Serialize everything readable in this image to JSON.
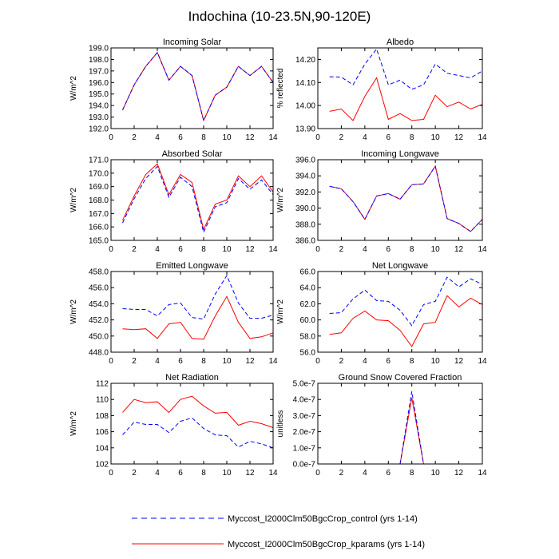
{
  "figure": {
    "title": "Indochina (10-23.5N,90-120E)",
    "colors": {
      "control": "#0000ff",
      "kparams": "#ff0000",
      "axis": "#000000"
    }
  },
  "legend": {
    "control": {
      "label": "Myccost_I2000Clm50BgcCrop_control (yrs 1-14)",
      "style": "dashed",
      "color": "#0000ff"
    },
    "kparams": {
      "label": "Myccost_I2000Clm50BgcCrop_kparams (yrs 1-14)",
      "style": "solid",
      "color": "#ff0000"
    }
  },
  "chart_data": [
    {
      "type": "line",
      "title": "Incoming Solar",
      "ylabel": "W/m^2",
      "x": [
        1,
        2,
        3,
        4,
        5,
        6,
        7,
        8,
        9,
        10,
        11,
        12,
        13,
        14
      ],
      "xlim": [
        0,
        14
      ],
      "xticks": [
        0,
        2,
        4,
        6,
        8,
        10,
        12,
        14
      ],
      "xtick_labels": [
        "0",
        "2",
        "4",
        "6",
        "8",
        "10",
        "12",
        "14"
      ],
      "ylim": [
        192,
        199
      ],
      "yticks": [
        192,
        193,
        194,
        195,
        196,
        197,
        198,
        199
      ],
      "ytick_labels": [
        "192.0",
        "193.0",
        "194.0",
        "195.0",
        "196.0",
        "197.0",
        "198.0",
        "199.0"
      ],
      "series": [
        {
          "name": "control",
          "values": [
            193.6,
            195.8,
            197.4,
            198.6,
            196.2,
            197.4,
            196.6,
            192.7,
            194.9,
            195.6,
            197.4,
            196.6,
            197.4,
            196.0
          ]
        },
        {
          "name": "kparams",
          "values": [
            193.6,
            195.8,
            197.4,
            198.6,
            196.2,
            197.4,
            196.6,
            192.7,
            194.9,
            195.6,
            197.4,
            196.6,
            197.4,
            196.0
          ]
        }
      ]
    },
    {
      "type": "line",
      "title": "Albedo",
      "ylabel": "% reflected",
      "x": [
        1,
        2,
        3,
        4,
        5,
        6,
        7,
        8,
        9,
        10,
        11,
        12,
        13,
        14
      ],
      "xlim": [
        0,
        14
      ],
      "xticks": [
        0,
        2,
        4,
        6,
        8,
        10,
        12,
        14
      ],
      "xtick_labels": [
        "0",
        "2",
        "4",
        "6",
        "8",
        "10",
        "12",
        "14"
      ],
      "ylim": [
        13.9,
        14.25
      ],
      "yticks": [
        13.9,
        14.0,
        14.1,
        14.2
      ],
      "ytick_labels": [
        "13.90",
        "14.00",
        "14.10",
        "14.20"
      ],
      "series": [
        {
          "name": "control",
          "values": [
            14.125,
            14.123,
            14.09,
            14.18,
            14.245,
            14.09,
            14.11,
            14.07,
            14.09,
            14.18,
            14.14,
            14.13,
            14.12,
            14.15
          ]
        },
        {
          "name": "kparams",
          "values": [
            13.975,
            13.985,
            13.935,
            14.04,
            14.12,
            13.94,
            13.965,
            13.935,
            13.94,
            14.045,
            13.995,
            14.015,
            13.985,
            14.005
          ]
        }
      ]
    },
    {
      "type": "line",
      "title": "Absorbed Solar",
      "ylabel": "W/m^2",
      "x": [
        1,
        2,
        3,
        4,
        5,
        6,
        7,
        8,
        9,
        10,
        11,
        12,
        13,
        14
      ],
      "xlim": [
        0,
        14
      ],
      "xticks": [
        0,
        2,
        4,
        6,
        8,
        10,
        12,
        14
      ],
      "xtick_labels": [
        "0",
        "2",
        "4",
        "6",
        "8",
        "10",
        "12",
        "14"
      ],
      "ylim": [
        165,
        171
      ],
      "yticks": [
        165,
        166,
        167,
        168,
        169,
        170,
        171
      ],
      "ytick_labels": [
        "165.0",
        "166.0",
        "167.0",
        "168.0",
        "169.0",
        "170.0",
        "171.0"
      ],
      "series": [
        {
          "name": "control",
          "values": [
            166.3,
            168.1,
            169.6,
            170.5,
            168.2,
            169.7,
            169.0,
            165.6,
            167.5,
            167.8,
            169.6,
            168.8,
            169.5,
            168.4
          ]
        },
        {
          "name": "kparams",
          "values": [
            166.5,
            168.3,
            169.9,
            170.7,
            168.4,
            169.9,
            169.3,
            165.8,
            167.7,
            168.0,
            169.8,
            169.0,
            169.8,
            168.6
          ]
        }
      ]
    },
    {
      "type": "line",
      "title": "Incoming Longwave",
      "ylabel": "W/m^2",
      "x": [
        1,
        2,
        3,
        4,
        5,
        6,
        7,
        8,
        9,
        10,
        11,
        12,
        13,
        14
      ],
      "xlim": [
        0,
        14
      ],
      "xticks": [
        0,
        2,
        4,
        6,
        8,
        10,
        12,
        14
      ],
      "xtick_labels": [
        "0",
        "2",
        "4",
        "6",
        "8",
        "10",
        "12",
        "14"
      ],
      "ylim": [
        386,
        396
      ],
      "yticks": [
        386,
        388,
        390,
        392,
        394,
        396
      ],
      "ytick_labels": [
        "386.0",
        "388.0",
        "390.0",
        "392.0",
        "394.0",
        "396.0"
      ],
      "series": [
        {
          "name": "control",
          "values": [
            392.7,
            392.4,
            390.8,
            388.6,
            391.5,
            391.8,
            391.1,
            392.9,
            393.0,
            395.2,
            388.7,
            388.1,
            387.1,
            388.6
          ]
        },
        {
          "name": "kparams",
          "values": [
            392.7,
            392.4,
            390.8,
            388.6,
            391.5,
            391.8,
            391.1,
            392.9,
            393.0,
            395.2,
            388.7,
            388.1,
            387.1,
            388.6
          ]
        }
      ]
    },
    {
      "type": "line",
      "title": "Emitted Longwave",
      "ylabel": "W/m^2",
      "x": [
        1,
        2,
        3,
        4,
        5,
        6,
        7,
        8,
        9,
        10,
        11,
        12,
        13,
        14
      ],
      "xlim": [
        0,
        14
      ],
      "xticks": [
        0,
        2,
        4,
        6,
        8,
        10,
        12,
        14
      ],
      "xtick_labels": [
        "0",
        "2",
        "4",
        "6",
        "8",
        "10",
        "12",
        "14"
      ],
      "ylim": [
        448,
        458
      ],
      "yticks": [
        448,
        450,
        452,
        454,
        456,
        458
      ],
      "ytick_labels": [
        "448.0",
        "450.0",
        "452.0",
        "454.0",
        "456.0",
        "458.0"
      ],
      "series": [
        {
          "name": "control",
          "values": [
            453.4,
            453.3,
            453.3,
            452.5,
            453.9,
            454.1,
            452.3,
            452.1,
            455.2,
            457.5,
            454.1,
            452.2,
            452.2,
            452.6
          ]
        },
        {
          "name": "kparams",
          "values": [
            450.9,
            450.8,
            450.9,
            449.7,
            451.5,
            451.7,
            449.7,
            449.6,
            452.5,
            454.9,
            451.7,
            449.7,
            449.9,
            450.4
          ]
        }
      ]
    },
    {
      "type": "line",
      "title": "Net Longwave",
      "ylabel": "W/m^2",
      "x": [
        1,
        2,
        3,
        4,
        5,
        6,
        7,
        8,
        9,
        10,
        11,
        12,
        13,
        14
      ],
      "xlim": [
        0,
        14
      ],
      "xticks": [
        0,
        2,
        4,
        6,
        8,
        10,
        12,
        14
      ],
      "xtick_labels": [
        "0",
        "2",
        "4",
        "6",
        "8",
        "10",
        "12",
        "14"
      ],
      "ylim": [
        56,
        66
      ],
      "yticks": [
        56,
        58,
        60,
        62,
        64,
        66
      ],
      "ytick_labels": [
        "56.0",
        "58.0",
        "60.0",
        "62.0",
        "64.0",
        "66.0"
      ],
      "series": [
        {
          "name": "control",
          "values": [
            60.8,
            60.9,
            62.6,
            63.7,
            62.4,
            62.3,
            61.2,
            59.3,
            61.9,
            62.3,
            65.3,
            64.1,
            65.1,
            64.4
          ]
        },
        {
          "name": "kparams",
          "values": [
            58.2,
            58.4,
            60.2,
            61.1,
            60.0,
            59.9,
            58.7,
            56.7,
            59.5,
            59.7,
            63.0,
            61.6,
            62.7,
            61.9
          ]
        }
      ]
    },
    {
      "type": "line",
      "title": "Net Radiation",
      "ylabel": "W/m^2",
      "x": [
        1,
        2,
        3,
        4,
        5,
        6,
        7,
        8,
        9,
        10,
        11,
        12,
        13,
        14
      ],
      "xlim": [
        0,
        14
      ],
      "xticks": [
        0,
        2,
        4,
        6,
        8,
        10,
        12,
        14
      ],
      "xtick_labels": [
        "0",
        "2",
        "4",
        "6",
        "8",
        "10",
        "12",
        "14"
      ],
      "ylim": [
        102,
        112
      ],
      "yticks": [
        102,
        104,
        106,
        108,
        110,
        112
      ],
      "ytick_labels": [
        "102",
        "104",
        "106",
        "108",
        "110",
        "112"
      ],
      "series": [
        {
          "name": "control",
          "values": [
            105.6,
            107.2,
            106.9,
            106.9,
            105.9,
            107.3,
            107.7,
            106.4,
            105.6,
            105.5,
            104.1,
            104.8,
            104.5,
            104.0
          ]
        },
        {
          "name": "kparams",
          "values": [
            108.4,
            110.0,
            109.6,
            109.7,
            108.4,
            110.0,
            110.4,
            109.2,
            108.3,
            108.4,
            106.8,
            107.3,
            107.0,
            106.5
          ]
        }
      ]
    },
    {
      "type": "line",
      "title": "Ground Snow Covered Fraction",
      "ylabel": "unitless",
      "x": [
        1,
        2,
        3,
        4,
        5,
        6,
        7,
        8,
        9,
        10,
        11,
        12,
        13,
        14
      ],
      "xlim": [
        0,
        14
      ],
      "xticks": [
        0,
        2,
        4,
        6,
        8,
        10,
        12,
        14
      ],
      "xtick_labels": [
        "0",
        "2",
        "4",
        "6",
        "8",
        "10",
        "12",
        "14"
      ],
      "ylim": [
        0,
        5e-07
      ],
      "yticks": [
        0,
        1e-07,
        2e-07,
        3e-07,
        4e-07,
        5e-07
      ],
      "ytick_labels": [
        "0.0e-7",
        "1.0e-7",
        "2.0e-7",
        "3.0e-7",
        "4.0e-7",
        "5.0e-7"
      ],
      "series": [
        {
          "name": "control",
          "values": [
            0,
            0,
            0,
            0,
            0,
            0,
            0,
            4.5e-07,
            0,
            0,
            0,
            0,
            0,
            0
          ]
        },
        {
          "name": "kparams",
          "values": [
            0,
            0,
            0,
            0,
            0,
            0,
            0,
            4.1e-07,
            0,
            0,
            0,
            0,
            0,
            0
          ]
        }
      ]
    }
  ]
}
